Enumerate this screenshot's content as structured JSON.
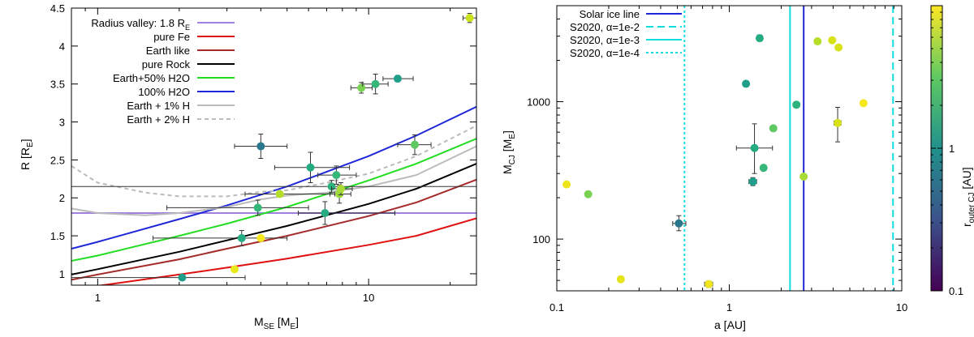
{
  "chart_data": [
    {
      "type": "scatter",
      "xscale": "log",
      "xlim": [
        0.8,
        25
      ],
      "ylim": [
        0.85,
        4.5
      ],
      "xlabel": "M",
      "xlabel_sub": "SE",
      "xlabel_unit": " [M",
      "xlabel_unit_sub": "E",
      "xlabel_close": "]",
      "ylabel": "R [R",
      "ylabel_sub": "E",
      "ylabel_close": "]",
      "xticks": [
        {
          "v": 1,
          "label": "1"
        },
        {
          "v": 10,
          "label": "10"
        }
      ],
      "yticks": [
        {
          "v": 1,
          "label": "1"
        },
        {
          "v": 1.5,
          "label": "1.5"
        },
        {
          "v": 2,
          "label": "2"
        },
        {
          "v": 2.5,
          "label": "2.5"
        },
        {
          "v": 3,
          "label": "3"
        },
        {
          "v": 3.5,
          "label": "3.5"
        },
        {
          "v": 4,
          "label": "4"
        },
        {
          "v": 4.5,
          "label": "4.5"
        }
      ],
      "legend_position": "top-left",
      "series": [
        {
          "name": "Radius valley: 1.8 R",
          "name_sub": "E",
          "color": "#9f7fe0",
          "dash": "",
          "x": [
            0.8,
            25
          ],
          "y": [
            1.8,
            1.8
          ]
        },
        {
          "name": "pure Fe",
          "color": "#e01010",
          "dash": "",
          "x": [
            0.8,
            1,
            2,
            3,
            5,
            10,
            15,
            25
          ],
          "y": [
            0.78,
            0.84,
            0.99,
            1.08,
            1.2,
            1.38,
            1.5,
            1.73
          ]
        },
        {
          "name": "Earth like",
          "color": "#a52a2a",
          "dash": "",
          "x": [
            0.8,
            1,
            2,
            3,
            5,
            10,
            15,
            25
          ],
          "y": [
            0.92,
            0.99,
            1.19,
            1.33,
            1.5,
            1.76,
            1.94,
            2.24
          ]
        },
        {
          "name": "pure Rock",
          "color": "#000000",
          "dash": "",
          "x": [
            0.8,
            1,
            2,
            3,
            5,
            10,
            15,
            25
          ],
          "y": [
            0.99,
            1.06,
            1.29,
            1.44,
            1.63,
            1.92,
            2.12,
            2.45
          ]
        },
        {
          "name": "Earth+50% H2O",
          "color": "#22dd22",
          "dash": "",
          "x": [
            0.8,
            1,
            2,
            3,
            5,
            10,
            15,
            25
          ],
          "y": [
            1.17,
            1.24,
            1.5,
            1.66,
            1.88,
            2.23,
            2.45,
            2.78
          ]
        },
        {
          "name": "100% H2O",
          "color": "#1f28d8",
          "dash": "",
          "x": [
            0.8,
            1,
            2,
            3,
            5,
            10,
            15,
            25
          ],
          "y": [
            1.33,
            1.42,
            1.72,
            1.9,
            2.15,
            2.55,
            2.82,
            3.2
          ]
        },
        {
          "name": "Earth + 1% H",
          "color": "#bbbbbb",
          "dash": "",
          "x": [
            0.8,
            1,
            1.5,
            2,
            3,
            4,
            5,
            7,
            10,
            15,
            25
          ],
          "y": [
            1.86,
            1.8,
            1.77,
            1.8,
            1.88,
            1.98,
            2.03,
            2.07,
            2.15,
            2.3,
            2.68
          ]
        },
        {
          "name": "Earth + 2% H",
          "color": "#bbbbbb",
          "dash": "5,4",
          "x": [
            0.8,
            1,
            1.5,
            2,
            3,
            4,
            5,
            7,
            10,
            15,
            25
          ],
          "y": [
            2.42,
            2.2,
            2.07,
            2.02,
            2.02,
            2.08,
            2.1,
            2.2,
            2.32,
            2.55,
            2.95
          ]
        }
      ],
      "points": [
        {
          "x": 2.05,
          "y": 0.95,
          "xerr": [
            0.8,
            3.5
          ],
          "yerr": 0.03,
          "c": "#1f9e89"
        },
        {
          "x": 3.2,
          "y": 1.06,
          "xerr": [
            0.3,
            0.2
          ],
          "yerr": 0.03,
          "c": "#e8e81c"
        },
        {
          "x": 3.4,
          "y": 1.47,
          "xerr": [
            1.6,
            5.0
          ],
          "yerr": 0.1,
          "c": "#25ab82"
        },
        {
          "x": 4.0,
          "y": 1.47,
          "xerr": [
            0,
            0
          ],
          "yerr": 0,
          "c": "#f5e61e"
        },
        {
          "x": 3.9,
          "y": 1.87,
          "xerr": [
            1.8,
            6.0
          ],
          "yerr": 0.1,
          "c": "#35b779"
        },
        {
          "x": 4.0,
          "y": 2.68,
          "xerr": [
            3.2,
            5.0
          ],
          "yerr": 0.16,
          "c": "#2a788e"
        },
        {
          "x": 4.7,
          "y": 2.05,
          "xerr": [
            3.5,
            7.5
          ],
          "yerr": 0.03,
          "c": "#b5de2b"
        },
        {
          "x": 6.1,
          "y": 2.4,
          "xerr": [
            4.5,
            8.5
          ],
          "yerr": 0.2,
          "c": "#25ab82"
        },
        {
          "x": 6.9,
          "y": 1.8,
          "xerr": [
            5.5,
            12.5
          ],
          "yerr": 0.15,
          "c": "#25ab82"
        },
        {
          "x": 7.3,
          "y": 2.15,
          "xerr": [
            0.8,
            25
          ],
          "yerr": 0.08,
          "c": "#2db27d"
        },
        {
          "x": 7.6,
          "y": 2.3,
          "xerr": [
            6.5,
            9.0
          ],
          "yerr": 0.12,
          "c": "#35b779"
        },
        {
          "x": 7.8,
          "y": 2.05,
          "xerr": [
            7.2,
            8.6
          ],
          "yerr": 0.12,
          "c": "#9bd93c"
        },
        {
          "x": 7.9,
          "y": 2.12,
          "xerr": [
            7.3,
            8.7
          ],
          "yerr": 0.08,
          "c": "#a8db34"
        },
        {
          "x": 9.4,
          "y": 3.45,
          "xerr": [
            8.6,
            10.3
          ],
          "yerr": 0.07,
          "c": "#7ad151"
        },
        {
          "x": 10.6,
          "y": 3.5,
          "xerr": [
            9.5,
            11.8
          ],
          "yerr": 0.13,
          "c": "#35b779"
        },
        {
          "x": 12.8,
          "y": 3.57,
          "xerr": [
            11.3,
            14.6
          ],
          "yerr": 0.04,
          "c": "#1f9e89"
        },
        {
          "x": 14.8,
          "y": 2.7,
          "xerr": [
            12.8,
            17.0
          ],
          "yerr": 0.13,
          "c": "#5ec962"
        },
        {
          "x": 23.6,
          "y": 4.37,
          "xerr": [
            22.3,
            25
          ],
          "yerr": 0.06,
          "c": "#cce11e"
        }
      ]
    },
    {
      "type": "scatter",
      "xscale": "log",
      "yscale": "log",
      "xlim": [
        0.1,
        10
      ],
      "ylim": [
        42,
        5000
      ],
      "xlabel": "a [AU]",
      "ylabel": "M",
      "ylabel_sub": "CJ",
      "ylabel_unit": " [M",
      "ylabel_unit_sub": "E",
      "ylabel_close": "]",
      "xticks": [
        {
          "v": 0.1,
          "label": "0.1"
        },
        {
          "v": 1,
          "label": "1"
        },
        {
          "v": 10,
          "label": "10"
        }
      ],
      "yticks": [
        {
          "v": 100,
          "label": "100"
        },
        {
          "v": 1000,
          "label": "1000"
        }
      ],
      "colorbar": {
        "label": "r",
        "label_sub": "outer CJ",
        "label_unit": " [AU]",
        "min": 0.1,
        "max": 10,
        "ticks": [
          {
            "v": 0.1,
            "label": "0.1"
          },
          {
            "v": 1,
            "label": "1"
          }
        ],
        "colors": [
          "#440154",
          "#3b528b",
          "#21918c",
          "#5ec962",
          "#fde725"
        ]
      },
      "legend_position": "top-left",
      "vlines": [
        {
          "name": "Solar ice line",
          "x": 2.7,
          "color": "#1f28d8",
          "dash": ""
        },
        {
          "name": "S2020, α=1e-2",
          "x": 8.9,
          "color": "#11dddd",
          "dash": "9,5"
        },
        {
          "name": "S2020, α=1e-3",
          "x": 2.25,
          "color": "#11dddd",
          "dash": ""
        },
        {
          "name": "S2020, α=1e-4",
          "x": 0.55,
          "color": "#11dddd",
          "dash": "3,3"
        }
      ],
      "points": [
        {
          "x": 0.114,
          "y": 250,
          "xerr": [
            0,
            0
          ],
          "yerr": [
            250,
            250
          ],
          "c": "#ebe51a"
        },
        {
          "x": 0.152,
          "y": 212,
          "xerr": [
            0,
            0
          ],
          "yerr": [
            207,
            217
          ],
          "c": "#7ad151"
        },
        {
          "x": 0.235,
          "y": 51,
          "xerr": [
            0,
            0
          ],
          "yerr": [
            49.5,
            52.5
          ],
          "c": "#e5e419"
        },
        {
          "x": 0.51,
          "y": 130,
          "xerr": [
            0.47,
            0.56
          ],
          "yerr": [
            115,
            148
          ],
          "c": "#2a788e"
        },
        {
          "x": 0.76,
          "y": 47,
          "xerr": [
            0.72,
            0.8
          ],
          "yerr": [
            44.5,
            49.5
          ],
          "c": "#f0e51c"
        },
        {
          "x": 1.25,
          "y": 1350,
          "xerr": [
            0,
            0
          ],
          "yerr": [
            1350,
            1350
          ],
          "c": "#1f9e89"
        },
        {
          "x": 1.37,
          "y": 262,
          "xerr": [
            1.3,
            1.44
          ],
          "yerr": [
            245,
            280
          ],
          "c": "#1f9e89"
        },
        {
          "x": 1.4,
          "y": 460,
          "xerr": [
            1.1,
            1.78
          ],
          "yerr": [
            300,
            690
          ],
          "c": "#25ab82"
        },
        {
          "x": 1.5,
          "y": 2900,
          "xerr": [
            1.45,
            1.56
          ],
          "yerr": [
            2750,
            3060
          ],
          "c": "#25ab82"
        },
        {
          "x": 1.58,
          "y": 330,
          "xerr": [
            0,
            0
          ],
          "yerr": [
            330,
            330
          ],
          "c": "#35b779"
        },
        {
          "x": 1.8,
          "y": 640,
          "xerr": [
            1.75,
            1.85
          ],
          "yerr": [
            615,
            665
          ],
          "c": "#5ec962"
        },
        {
          "x": 2.45,
          "y": 950,
          "xerr": [
            2.35,
            2.55
          ],
          "yerr": [
            910,
            990
          ],
          "c": "#2db27d"
        },
        {
          "x": 2.7,
          "y": 285,
          "xerr": [
            2.62,
            2.78
          ],
          "yerr": [
            272,
            298
          ],
          "c": "#a8db34"
        },
        {
          "x": 3.25,
          "y": 2750,
          "xerr": [
            0,
            0
          ],
          "yerr": [
            2750,
            2750
          ],
          "c": "#b5de2b"
        },
        {
          "x": 3.95,
          "y": 2800,
          "xerr": [
            0,
            0
          ],
          "yerr": [
            2800,
            2800
          ],
          "c": "#d8e219"
        },
        {
          "x": 4.3,
          "y": 2480,
          "xerr": [
            0,
            0
          ],
          "yerr": [
            2480,
            2480
          ],
          "c": "#d8e219"
        },
        {
          "x": 4.25,
          "y": 700,
          "xerr": [
            4.05,
            4.45
          ],
          "yerr": [
            510,
            910
          ],
          "c": "#d8e219"
        },
        {
          "x": 6.0,
          "y": 975,
          "xerr": [
            5.85,
            6.15
          ],
          "yerr": [
            940,
            1010
          ],
          "c": "#f5e61e"
        }
      ]
    }
  ]
}
